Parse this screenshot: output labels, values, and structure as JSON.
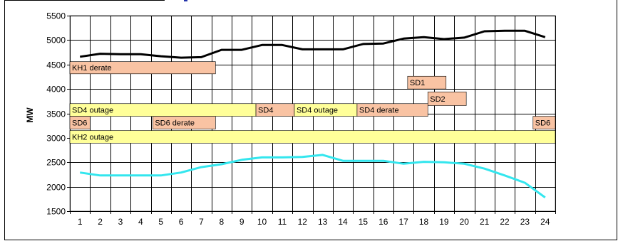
{
  "chart_data": {
    "type": "line",
    "title": "",
    "xlabel": "",
    "ylabel": "MW",
    "ylim": [
      1500,
      5500
    ],
    "yticks": [
      1500,
      2000,
      2500,
      3000,
      3500,
      4000,
      4500,
      5000,
      5500
    ],
    "x": [
      1,
      2,
      3,
      4,
      5,
      6,
      7,
      8,
      9,
      10,
      11,
      12,
      13,
      14,
      15,
      16,
      17,
      18,
      19,
      20,
      21,
      22,
      23,
      24
    ],
    "grid": true,
    "series": [
      {
        "color": "#000000",
        "values": [
          4660,
          4720,
          4710,
          4710,
          4670,
          4640,
          4650,
          4800,
          4800,
          4900,
          4900,
          4810,
          4810,
          4810,
          4920,
          4930,
          5030,
          5060,
          5020,
          5050,
          5180,
          5190,
          5190,
          5060
        ]
      },
      {
        "color": "#33e6ee",
        "values": [
          2290,
          2230,
          2230,
          2230,
          2230,
          2290,
          2400,
          2460,
          2550,
          2600,
          2600,
          2610,
          2650,
          2530,
          2530,
          2530,
          2470,
          2510,
          2500,
          2470,
          2370,
          2230,
          2080,
          1780
        ]
      }
    ],
    "outage_bars": [
      {
        "label": "KH1 derate",
        "start": 0.5,
        "end": 7.7,
        "y_low": 4310,
        "y_high": 4560,
        "color": "#f9c3a3"
      },
      {
        "label": "SD1",
        "start": 17.2,
        "end": 19.1,
        "y_low": 4000,
        "y_high": 4260,
        "color": "#f9c3a3"
      },
      {
        "label": "SD2",
        "start": 18.2,
        "end": 20.1,
        "y_low": 3660,
        "y_high": 3940,
        "color": "#f9c3a3"
      },
      {
        "label": "SD4 outage",
        "start": 0.5,
        "end": 9.7,
        "y_low": 3440,
        "y_high": 3700,
        "color": "#ffff99"
      },
      {
        "label": "SD4",
        "start": 9.7,
        "end": 11.6,
        "y_low": 3440,
        "y_high": 3700,
        "color": "#f9c3a3"
      },
      {
        "label": "SD4 outage",
        "start": 11.6,
        "end": 14.7,
        "y_low": 3440,
        "y_high": 3700,
        "color": "#ffff99"
      },
      {
        "label": "SD4 derate",
        "start": 14.7,
        "end": 18.2,
        "y_low": 3440,
        "y_high": 3700,
        "color": "#f9c3a3"
      },
      {
        "label": "SD6",
        "start": 0.5,
        "end": 1.5,
        "y_low": 3180,
        "y_high": 3440,
        "color": "#f9c3a3"
      },
      {
        "label": "SD6 derate",
        "start": 4.6,
        "end": 7.7,
        "y_low": 3180,
        "y_high": 3440,
        "color": "#f9c3a3"
      },
      {
        "label": "SD6",
        "start": 23.4,
        "end": 24.5,
        "y_low": 3180,
        "y_high": 3440,
        "color": "#f9c3a3"
      },
      {
        "label": "KH2 outage",
        "start": 0.5,
        "end": 24.5,
        "y_low": 2890,
        "y_high": 3150,
        "color": "#ffff99"
      }
    ]
  }
}
